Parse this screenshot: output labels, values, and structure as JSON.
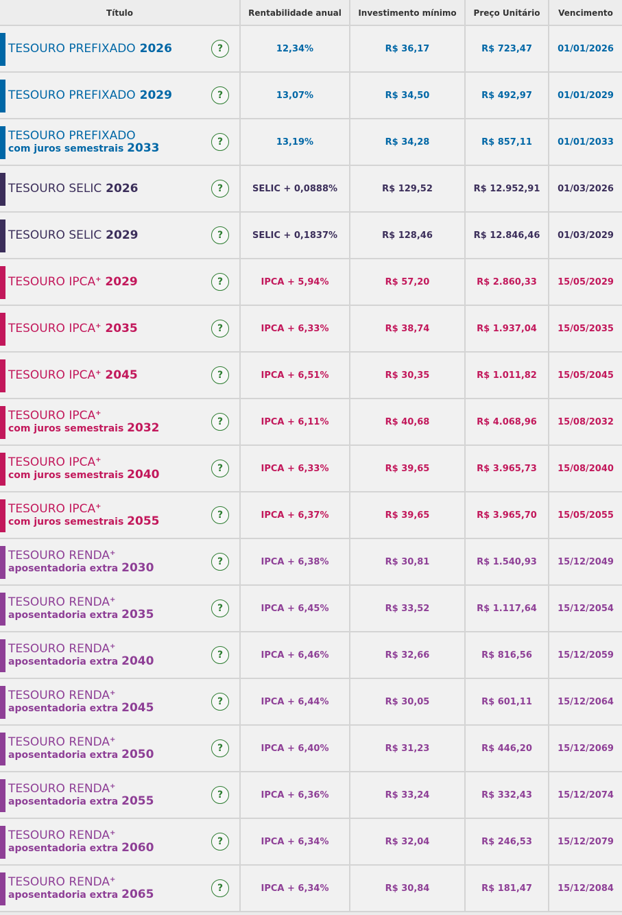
{
  "headers": [
    "Título",
    "Rentabilidade anual",
    "Investimento mínimo",
    "Preço Unitário",
    "Vencimento"
  ],
  "help_symbol": "?",
  "colors": {
    "prefixado": "#0067a6",
    "selic": "#3b2e5a",
    "ipca": "#c2185b",
    "renda": "#8e3f96"
  },
  "rows": [
    {
      "group": "prefixado",
      "name": "TESOURO PREFIXADO",
      "plus": "",
      "line2": "",
      "year": "2026",
      "rent": "12,34%",
      "inv": "R$ 36,17",
      "preco": "R$ 723,47",
      "venc": "01/01/2026"
    },
    {
      "group": "prefixado",
      "name": "TESOURO PREFIXADO",
      "plus": "",
      "line2": "",
      "year": "2029",
      "rent": "13,07%",
      "inv": "R$ 34,50",
      "preco": "R$ 492,97",
      "venc": "01/01/2029"
    },
    {
      "group": "prefixado",
      "name": "TESOURO PREFIXADO",
      "plus": "",
      "line2": "com juros semestrais",
      "year": "2033",
      "rent": "13,19%",
      "inv": "R$ 34,28",
      "preco": "R$ 857,11",
      "venc": "01/01/2033"
    },
    {
      "group": "selic",
      "name": "TESOURO SELIC",
      "plus": "",
      "line2": "",
      "year": "2026",
      "rent": "SELIC + 0,0888%",
      "inv": "R$ 129,52",
      "preco": "R$ 12.952,91",
      "venc": "01/03/2026"
    },
    {
      "group": "selic",
      "name": "TESOURO SELIC",
      "plus": "",
      "line2": "",
      "year": "2029",
      "rent": "SELIC + 0,1837%",
      "inv": "R$ 128,46",
      "preco": "R$ 12.846,46",
      "venc": "01/03/2029"
    },
    {
      "group": "ipca",
      "name": "TESOURO IPCA",
      "plus": "+",
      "line2": "",
      "year": "2029",
      "rent": "IPCA + 5,94%",
      "inv": "R$ 57,20",
      "preco": "R$ 2.860,33",
      "venc": "15/05/2029"
    },
    {
      "group": "ipca",
      "name": "TESOURO IPCA",
      "plus": "+",
      "line2": "",
      "year": "2035",
      "rent": "IPCA + 6,33%",
      "inv": "R$ 38,74",
      "preco": "R$ 1.937,04",
      "venc": "15/05/2035"
    },
    {
      "group": "ipca",
      "name": "TESOURO IPCA",
      "plus": "+",
      "line2": "",
      "year": "2045",
      "rent": "IPCA + 6,51%",
      "inv": "R$ 30,35",
      "preco": "R$ 1.011,82",
      "venc": "15/05/2045"
    },
    {
      "group": "ipca",
      "name": "TESOURO IPCA",
      "plus": "+",
      "line2": "com juros semestrais",
      "year": "2032",
      "rent": "IPCA + 6,11%",
      "inv": "R$ 40,68",
      "preco": "R$ 4.068,96",
      "venc": "15/08/2032"
    },
    {
      "group": "ipca",
      "name": "TESOURO IPCA",
      "plus": "+",
      "line2": "com juros semestrais",
      "year": "2040",
      "rent": "IPCA + 6,33%",
      "inv": "R$ 39,65",
      "preco": "R$ 3.965,73",
      "venc": "15/08/2040"
    },
    {
      "group": "ipca",
      "name": "TESOURO IPCA",
      "plus": "+",
      "line2": "com juros semestrais",
      "year": "2055",
      "rent": "IPCA + 6,37%",
      "inv": "R$ 39,65",
      "preco": "R$ 3.965,70",
      "venc": "15/05/2055"
    },
    {
      "group": "renda",
      "name": "TESOURO RENDA",
      "plus": "+",
      "line2": "aposentadoria extra",
      "year": "2030",
      "rent": "IPCA + 6,38%",
      "inv": "R$ 30,81",
      "preco": "R$ 1.540,93",
      "venc": "15/12/2049"
    },
    {
      "group": "renda",
      "name": "TESOURO RENDA",
      "plus": "+",
      "line2": "aposentadoria extra",
      "year": "2035",
      "rent": "IPCA + 6,45%",
      "inv": "R$ 33,52",
      "preco": "R$ 1.117,64",
      "venc": "15/12/2054"
    },
    {
      "group": "renda",
      "name": "TESOURO RENDA",
      "plus": "+",
      "line2": "aposentadoria extra",
      "year": "2040",
      "rent": "IPCA + 6,46%",
      "inv": "R$ 32,66",
      "preco": "R$ 816,56",
      "venc": "15/12/2059"
    },
    {
      "group": "renda",
      "name": "TESOURO RENDA",
      "plus": "+",
      "line2": "aposentadoria extra",
      "year": "2045",
      "rent": "IPCA + 6,44%",
      "inv": "R$ 30,05",
      "preco": "R$ 601,11",
      "venc": "15/12/2064"
    },
    {
      "group": "renda",
      "name": "TESOURO RENDA",
      "plus": "+",
      "line2": "aposentadoria extra",
      "year": "2050",
      "rent": "IPCA + 6,40%",
      "inv": "R$ 31,23",
      "preco": "R$ 446,20",
      "venc": "15/12/2069"
    },
    {
      "group": "renda",
      "name": "TESOURO RENDA",
      "plus": "+",
      "line2": "aposentadoria extra",
      "year": "2055",
      "rent": "IPCA + 6,36%",
      "inv": "R$ 33,24",
      "preco": "R$ 332,43",
      "venc": "15/12/2074"
    },
    {
      "group": "renda",
      "name": "TESOURO RENDA",
      "plus": "+",
      "line2": "aposentadoria extra",
      "year": "2060",
      "rent": "IPCA + 6,34%",
      "inv": "R$ 32,04",
      "preco": "R$ 246,53",
      "venc": "15/12/2079"
    },
    {
      "group": "renda",
      "name": "TESOURO RENDA",
      "plus": "+",
      "line2": "aposentadoria extra",
      "year": "2065",
      "rent": "IPCA + 6,34%",
      "inv": "R$ 30,84",
      "preco": "R$ 181,47",
      "venc": "15/12/2084"
    }
  ]
}
